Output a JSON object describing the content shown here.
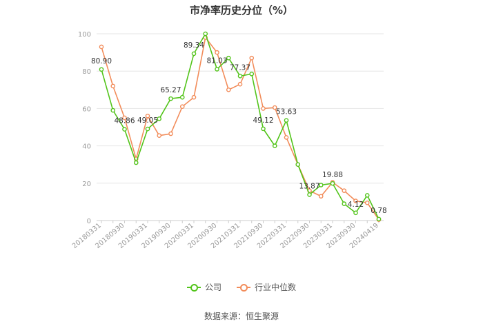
{
  "title": "市净率历史分位（%）",
  "source": "数据来源：恒生聚源",
  "colors": {
    "company": "#52c41a",
    "industry": "#f28c5a",
    "grid": "#e6e6e6",
    "axis": "#cccccc",
    "tick_text": "#999999",
    "label_text": "#333333"
  },
  "chart_data": {
    "type": "line",
    "title": "市净率历史分位（%）",
    "xlabel": "",
    "ylabel": "",
    "ylim": [
      0,
      100
    ],
    "yticks": [
      0,
      20,
      40,
      60,
      80,
      100
    ],
    "grid": true,
    "legend_position": "bottom",
    "x": [
      "20180331",
      "20180630",
      "20180930",
      "20181231",
      "20190331",
      "20190630",
      "20190930",
      "20191231",
      "20200331",
      "20200630",
      "20200930",
      "20201231",
      "20210331",
      "20210630",
      "20210930",
      "20211231",
      "20220331",
      "20220630",
      "20220930",
      "20221231",
      "20230331",
      "20230630",
      "20230930",
      "20231231",
      "20240419"
    ],
    "xtick_labels": [
      "20180331",
      "20180930",
      "20190331",
      "20190930",
      "20200331",
      "20200930",
      "20210331",
      "20210930",
      "20220331",
      "20220930",
      "20230331",
      "20230930",
      "20240419"
    ],
    "series": [
      {
        "name": "公司",
        "values": [
          80.9,
          59,
          48.86,
          31,
          49.05,
          54.5,
          65.27,
          66,
          89.34,
          100,
          81.03,
          87,
          77.37,
          78.5,
          49.12,
          40,
          53.63,
          30,
          13.87,
          19,
          19.88,
          9,
          4.12,
          13.5,
          0.78
        ]
      },
      {
        "name": "行业中位数",
        "values": [
          93,
          72,
          55,
          33,
          56,
          45.5,
          46.5,
          61,
          66,
          98,
          90,
          70,
          73,
          87,
          60,
          60.5,
          44.5,
          30,
          16,
          13,
          20.5,
          16,
          10.5,
          9.5,
          0.5
        ]
      }
    ],
    "data_labels": [
      {
        "series": 0,
        "index": 0,
        "text": "80.90"
      },
      {
        "series": 0,
        "index": 2,
        "text": "48.86"
      },
      {
        "series": 0,
        "index": 4,
        "text": "49.05"
      },
      {
        "series": 0,
        "index": 6,
        "text": "65.27"
      },
      {
        "series": 0,
        "index": 8,
        "text": "89.34"
      },
      {
        "series": 0,
        "index": 10,
        "text": "81.03"
      },
      {
        "series": 0,
        "index": 12,
        "text": "77.37"
      },
      {
        "series": 0,
        "index": 14,
        "text": "49.12"
      },
      {
        "series": 0,
        "index": 16,
        "text": "53.63"
      },
      {
        "series": 0,
        "index": 18,
        "text": "13.87"
      },
      {
        "series": 0,
        "index": 20,
        "text": "19.88"
      },
      {
        "series": 0,
        "index": 22,
        "text": "4.12"
      },
      {
        "series": 0,
        "index": 24,
        "text": "0.78"
      }
    ]
  }
}
